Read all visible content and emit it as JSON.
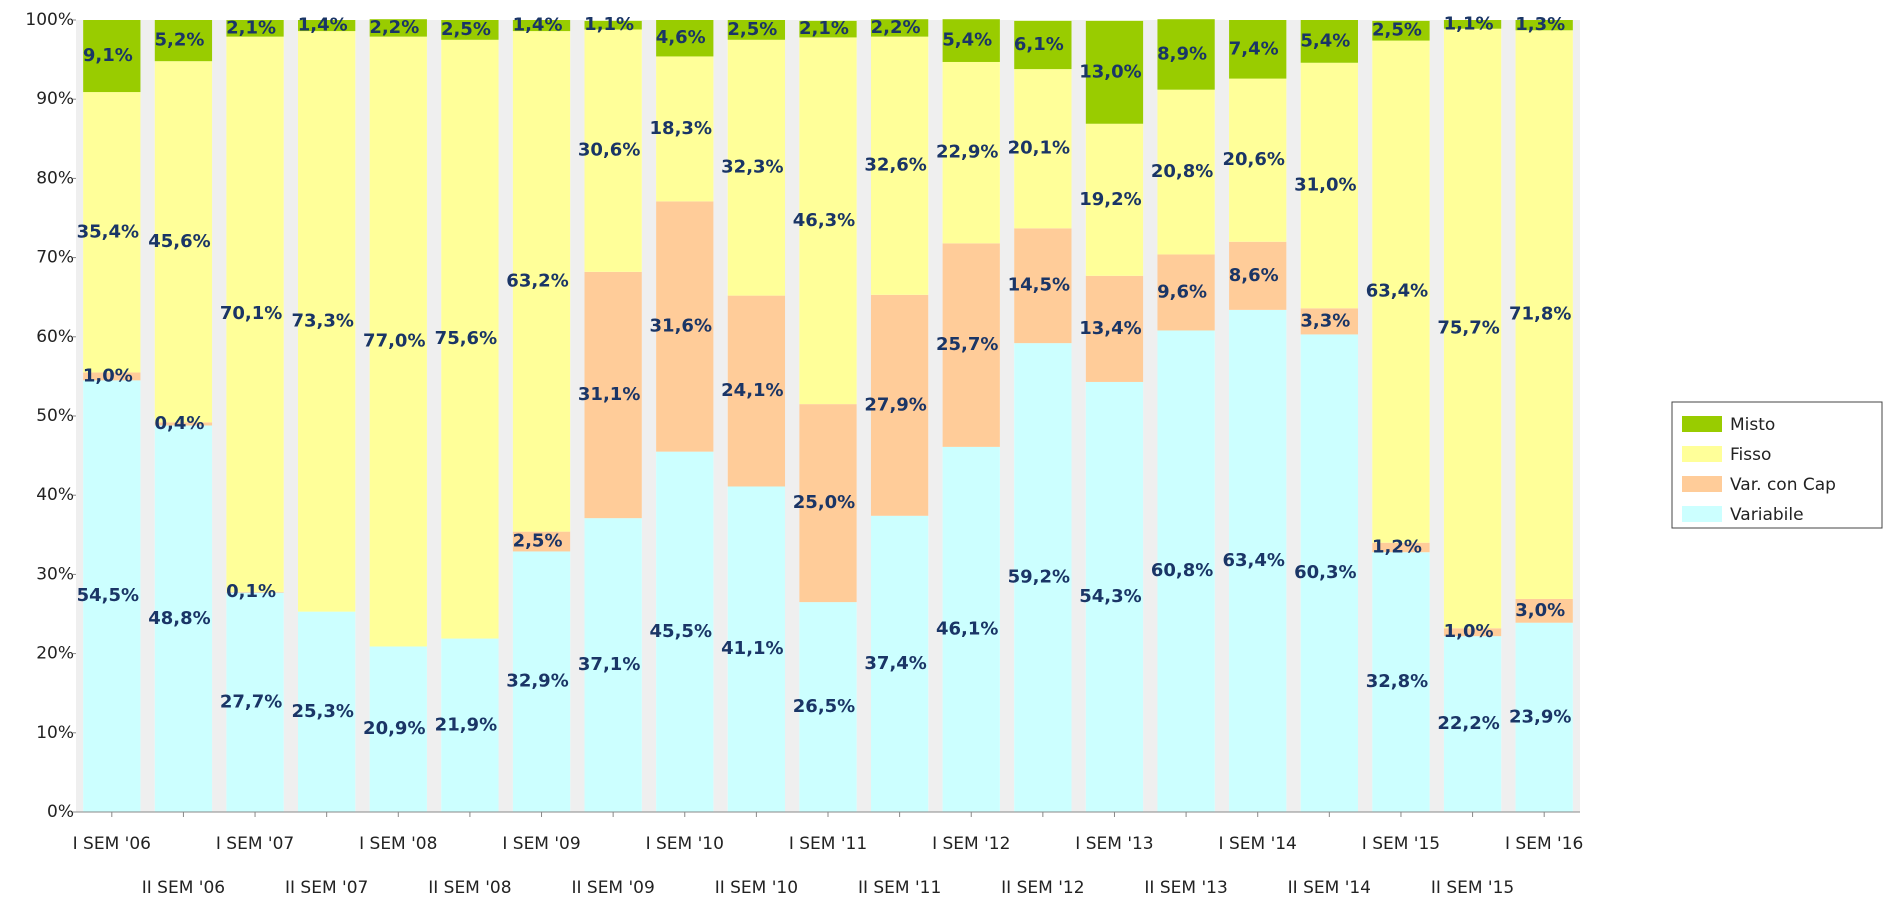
{
  "chart_data": {
    "type": "stacked_bar",
    "categories": [
      "I SEM '06",
      "II SEM '06",
      "I SEM '07",
      "II SEM '07",
      "I SEM '08",
      "II SEM '08",
      "I SEM '09",
      "II SEM '09",
      "I SEM '10",
      "II SEM '10",
      "I SEM '11",
      "II SEM '11",
      "I SEM '12",
      "II SEM '12",
      "I SEM '13",
      "II SEM '13",
      "I SEM '14",
      "II SEM '14",
      "I SEM '15",
      "II SEM '15",
      "I SEM '16"
    ],
    "series": [
      {
        "name": "Variabile",
        "color": "#ccffff",
        "values": [
          54.5,
          48.8,
          27.7,
          25.3,
          20.9,
          21.9,
          32.9,
          37.1,
          45.5,
          41.1,
          26.5,
          37.4,
          46.1,
          59.2,
          54.3,
          60.8,
          63.4,
          60.3,
          32.8,
          22.2,
          23.9
        ],
        "value_labels": [
          "54,5%",
          "48,8%",
          "27,7%",
          "25,3%",
          "20,9%",
          "21,9%",
          "32,9%",
          "37,1%",
          "45,5%",
          "41,1%",
          "26,5%",
          "37,4%",
          "46,1%",
          "59,2%",
          "54,3%",
          "60,8%",
          "63,4%",
          "60,3%",
          "32,8%",
          "22,2%",
          "23,9%"
        ]
      },
      {
        "name": "Var. con Cap",
        "color": "#ffcc99",
        "values": [
          1.0,
          0.4,
          0.1,
          null,
          null,
          null,
          2.5,
          31.1,
          31.6,
          24.1,
          25.0,
          27.9,
          25.7,
          14.5,
          13.4,
          9.6,
          8.6,
          3.3,
          1.2,
          1.0,
          3.0
        ],
        "value_labels": [
          "1,0%",
          "0,4%",
          "0,1%",
          null,
          null,
          null,
          "2,5%",
          "31,1%",
          "31,6%",
          "24,1%",
          "25,0%",
          "27,9%",
          "25,7%",
          "14,5%",
          "13,4%",
          "9,6%",
          "8,6%",
          "3,3%",
          "1,2%",
          "1,0%",
          "3,0%"
        ]
      },
      {
        "name": "Fisso",
        "color": "#ffff99",
        "values": [
          35.4,
          45.6,
          70.1,
          73.3,
          77.0,
          75.6,
          63.2,
          30.6,
          18.3,
          32.3,
          46.3,
          32.6,
          22.9,
          20.1,
          19.2,
          20.8,
          20.6,
          31.0,
          63.4,
          75.7,
          71.8
        ],
        "value_labels": [
          "35,4%",
          "45,6%",
          "70,1%",
          "73,3%",
          "77,0%",
          "75,6%",
          "63,2%",
          "30,6%",
          "18,3%",
          "32,3%",
          "46,3%",
          "32,6%",
          "22,9%",
          "20,1%",
          "19,2%",
          "20,8%",
          "20,6%",
          "31,0%",
          "63,4%",
          "75,7%",
          "71,8%"
        ]
      },
      {
        "name": "Misto",
        "color": "#99cc00",
        "values": [
          9.1,
          5.2,
          2.1,
          1.4,
          2.2,
          2.5,
          1.4,
          1.1,
          4.6,
          2.5,
          2.1,
          2.2,
          5.4,
          6.1,
          13.0,
          8.9,
          7.4,
          5.4,
          2.5,
          1.1,
          1.3
        ],
        "value_labels": [
          "9,1%",
          "5,2%",
          "2,1%",
          "1,4%",
          "2,2%",
          "2,5%",
          "1,4%",
          "1,1%",
          "4,6%",
          "2,5%",
          "2,1%",
          "2,2%",
          "5,4%",
          "6,1%",
          "13,0%",
          "8,9%",
          "7,4%",
          "5,4%",
          "2,5%",
          "1,1%",
          "1,3%"
        ]
      }
    ],
    "ylim": [
      0,
      100
    ],
    "yticks": [
      {
        "value": 0,
        "label": "0%"
      },
      {
        "value": 10,
        "label": "10%"
      },
      {
        "value": 20,
        "label": "20%"
      },
      {
        "value": 30,
        "label": "30%"
      },
      {
        "value": 40,
        "label": "40%"
      },
      {
        "value": 50,
        "label": "50%"
      },
      {
        "value": 60,
        "label": "60%"
      },
      {
        "value": 70,
        "label": "70%"
      },
      {
        "value": 80,
        "label": "80%"
      },
      {
        "value": 90,
        "label": "90%"
      },
      {
        "value": 100,
        "label": "100%"
      }
    ],
    "legend": "right"
  }
}
